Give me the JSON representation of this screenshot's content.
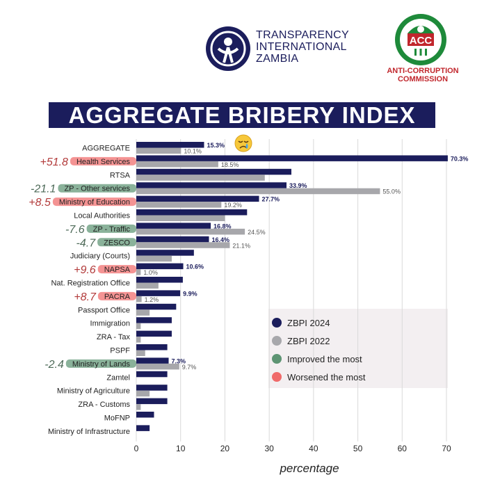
{
  "header": {
    "ti_logo_lines": [
      "TRANSPARENCY",
      "INTERNATIONAL",
      "ZAMBIA"
    ],
    "acc_badge": "ACC",
    "acc_lines": [
      "ANTI-CORRUPTION",
      "COMMISSION"
    ],
    "title": "AGGREGATE BRIBERY INDEX"
  },
  "colors": {
    "zbpi_2024": "#1b1d5c",
    "zbpi_2022": "#a7a7ab",
    "improved": "#5d9473",
    "worsened": "#f06a6a",
    "annotation_ink": "#b23a3a",
    "improved_ink": "#4d6a58"
  },
  "chart_data": {
    "type": "bar",
    "orientation": "horizontal",
    "title": "AGGREGATE BRIBERY INDEX",
    "xlabel": "percentage",
    "ylabel": "",
    "xlim": [
      0,
      70
    ],
    "xticks": [
      0,
      10,
      20,
      30,
      40,
      50,
      60,
      70
    ],
    "grid": "vertical",
    "legend_position": "right",
    "categories": [
      "AGGREGATE",
      "Health Services",
      "RTSA",
      "ZP - Other services",
      "Ministry of Education",
      "Local Authorities",
      "ZP - Traffic",
      "ZESCO",
      "Judiciary (Courts)",
      "NAPSA",
      "Nat. Registration Office",
      "PACRA",
      "Passport Office",
      "Immigration",
      "ZRA - Tax",
      "PSPF",
      "Ministry of Lands",
      "Zamtel",
      "Ministry of Agriculture",
      "ZRA - Customs",
      "MoFNP",
      "Ministry of Infrastructure"
    ],
    "series": [
      {
        "name": "ZBPI 2024",
        "values": [
          15.3,
          70.3,
          35.0,
          33.9,
          27.7,
          25.0,
          16.8,
          16.4,
          13.0,
          10.6,
          10.5,
          9.9,
          9.0,
          8.0,
          8.0,
          7.0,
          7.3,
          7.0,
          7.0,
          7.0,
          4.0,
          3.0
        ],
        "labels": [
          "15.3%",
          "70.3%",
          "",
          "33.9%",
          "27.7%",
          "",
          "16.8%",
          "16.4%",
          "",
          "10.6%",
          "",
          "9.9%",
          "",
          "",
          "",
          "",
          "7.3%",
          "",
          "",
          "",
          "",
          ""
        ]
      },
      {
        "name": "ZBPI 2022",
        "values": [
          10.1,
          18.5,
          29.0,
          55.0,
          19.2,
          20.0,
          24.5,
          21.1,
          8.0,
          1.0,
          5.0,
          1.2,
          3.0,
          1.0,
          1.0,
          2.0,
          9.7,
          0,
          3.0,
          1.0,
          0,
          0
        ],
        "labels": [
          "10.1%",
          "18.5%",
          "",
          "55.0%",
          "19.2%",
          "",
          "24.5%",
          "21.1%",
          "",
          "1.0%",
          "",
          "1.2%",
          "",
          "",
          "",
          "",
          "9.7%",
          "",
          "",
          "",
          "",
          ""
        ]
      }
    ],
    "highlights": [
      {
        "category": "Health Services",
        "status": "worsened",
        "change": "+51.8"
      },
      {
        "category": "ZP - Other services",
        "status": "improved",
        "change": "-21.1"
      },
      {
        "category": "Ministry of Education",
        "status": "worsened",
        "change": "+8.5"
      },
      {
        "category": "ZP - Traffic",
        "status": "improved",
        "change": "-7.6"
      },
      {
        "category": "ZESCO",
        "status": "improved",
        "change": "-4.7"
      },
      {
        "category": "NAPSA",
        "status": "worsened",
        "change": "+9.6"
      },
      {
        "category": "PACRA",
        "status": "worsened",
        "change": "+8.7"
      },
      {
        "category": "Ministry of Lands",
        "status": "improved",
        "change": "-2.4"
      }
    ],
    "legend": [
      {
        "label": "ZBPI 2024",
        "color_key": "zbpi_2024"
      },
      {
        "label": "ZBPI 2022",
        "color_key": "zbpi_2022"
      },
      {
        "label": "Improved the most",
        "color_key": "improved"
      },
      {
        "label": "Worsened the most",
        "color_key": "worsened"
      }
    ],
    "emoji_annotation": {
      "category": "AGGREGATE",
      "icon": "crying-face-icon"
    }
  }
}
